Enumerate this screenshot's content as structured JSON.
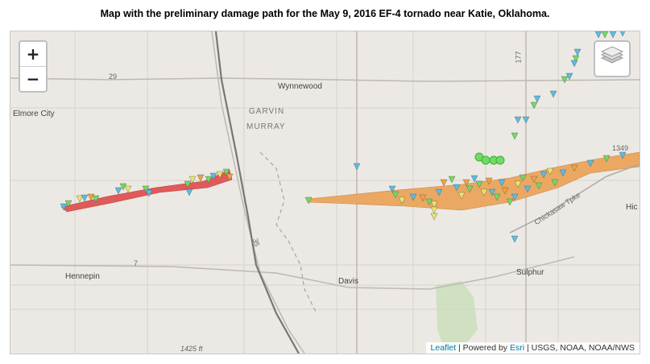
{
  "title": "Map with the preliminary damage path for the May 9, 2016 EF-4 tornado near Katie, Oklahoma.",
  "controls": {
    "zoom_in": "+",
    "zoom_out": "−",
    "layers_icon": "layers-icon"
  },
  "places": {
    "elmore_city": "Elmore City",
    "wynnewood": "Wynnewood",
    "garvin": "GARVIN",
    "murray": "MURRAY",
    "hennepin": "Hennepin",
    "davis": "Davis",
    "sulphur": "Sulphur",
    "hi": "Hic"
  },
  "roads": {
    "r29": "29",
    "r177": "177",
    "r1349": "1349",
    "r35": "35",
    "r7": "7",
    "chickasaw": "Chickasaw Tpke",
    "elev": "1425 ft"
  },
  "attribution": {
    "leaflet": "Leaflet",
    "powered_by": "| Powered by",
    "esri": "Esri",
    "sources": "| USGS, NOAA, NOAA/NWS"
  },
  "colors": {
    "map_bg": "#ece9e4",
    "path_west": "#e05a5a",
    "path_east": "#eaa863",
    "marker_blue": "#5bbce4",
    "marker_green": "#6fdc5f",
    "marker_yellow": "#e8e86a",
    "marker_orange": "#f0a33c",
    "park_green": "#cfe1c1"
  }
}
